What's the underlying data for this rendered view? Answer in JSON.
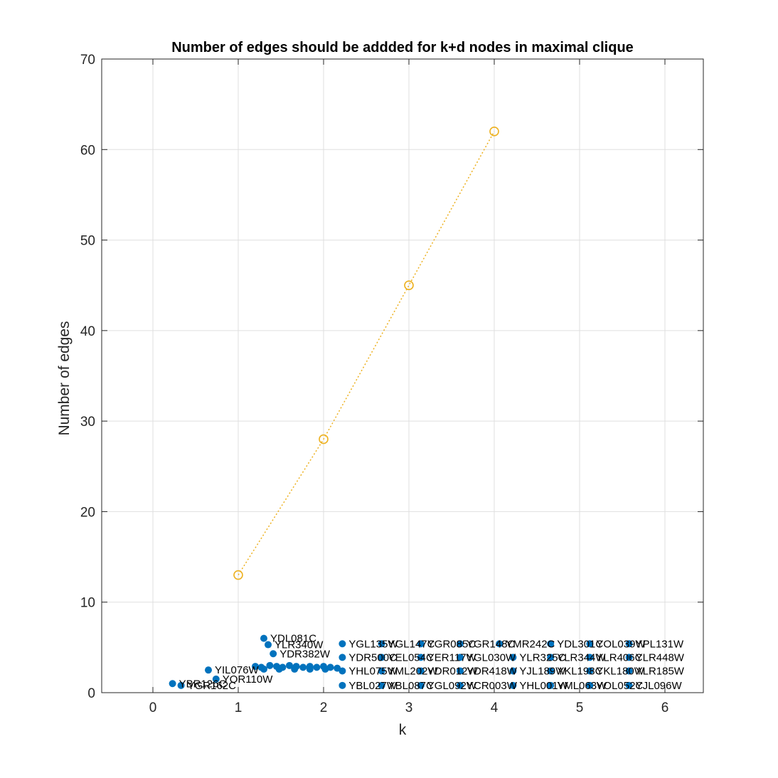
{
  "chart_data": {
    "type": "scatter",
    "title": "Number of edges should be addded for k+d nodes in maximal clique",
    "xlabel": "k",
    "ylabel": "Number of edges",
    "xlim": [
      -0.6,
      6.45
    ],
    "ylim": [
      0,
      70
    ],
    "xticks": [
      "0",
      "1",
      "2",
      "3",
      "4",
      "5",
      "6"
    ],
    "yticks": [
      "0",
      "10",
      "20",
      "30",
      "40",
      "50",
      "60",
      "70"
    ],
    "grid": true,
    "colors": {
      "line": "#EDB120",
      "points": "#0072BD",
      "grid": "#DFDFDF",
      "axis": "#262626"
    },
    "line_series": {
      "style": "dotted",
      "marker": "open-circle",
      "x": [
        1,
        2,
        3,
        4
      ],
      "y": [
        13,
        28,
        45,
        62
      ]
    },
    "points": [
      {
        "label": "YDL081C",
        "x": 1.3,
        "y": 6.0
      },
      {
        "label": "YLR340W",
        "x": 1.35,
        "y": 5.3
      },
      {
        "label": "YDR382W",
        "x": 1.41,
        "y": 4.3
      },
      {
        "label": "YIL076W",
        "x": 0.65,
        "y": 2.5
      },
      {
        "label": "YOR110W",
        "x": 0.74,
        "y": 1.5
      },
      {
        "label": "YBR126C",
        "x": 0.23,
        "y": 1.0
      },
      {
        "label": "YGR162C",
        "x": 0.33,
        "y": 0.8
      },
      {
        "label": "YGL135W",
        "x": 2.22,
        "y": 5.4
      },
      {
        "label": "YGL147C",
        "x": 2.68,
        "y": 5.4
      },
      {
        "label": "YGR085C",
        "x": 3.14,
        "y": 5.4
      },
      {
        "label": "YGR148C",
        "x": 3.6,
        "y": 5.4
      },
      {
        "label": "YMR242C",
        "x": 4.06,
        "y": 5.4
      },
      {
        "label": "YDL301C",
        "x": 4.66,
        "y": 5.4
      },
      {
        "label": "YOL039W",
        "x": 5.12,
        "y": 5.4
      },
      {
        "label": "YPL131W",
        "x": 5.58,
        "y": 5.4
      },
      {
        "label": "YDR500C",
        "x": 2.22,
        "y": 3.9
      },
      {
        "label": "YEL054C",
        "x": 2.68,
        "y": 3.9
      },
      {
        "label": "YER117W",
        "x": 3.14,
        "y": 3.9
      },
      {
        "label": "YGL030W",
        "x": 3.6,
        "y": 3.9
      },
      {
        "label": "YLR325C",
        "x": 4.22,
        "y": 3.9
      },
      {
        "label": "YLR344W",
        "x": 4.66,
        "y": 3.9
      },
      {
        "label": "YLR406C",
        "x": 5.12,
        "y": 3.9
      },
      {
        "label": "YLR448W",
        "x": 5.58,
        "y": 3.9
      },
      {
        "label": "YHL075W",
        "x": 2.22,
        "y": 2.4
      },
      {
        "label": "YML202W",
        "x": 2.68,
        "y": 2.4
      },
      {
        "label": "YDR012W",
        "x": 3.14,
        "y": 2.4
      },
      {
        "label": "YDR418W",
        "x": 3.6,
        "y": 2.4
      },
      {
        "label": "YJL189W",
        "x": 4.22,
        "y": 2.4
      },
      {
        "label": "YKL198C",
        "x": 4.66,
        "y": 2.4
      },
      {
        "label": "YKL180W",
        "x": 5.12,
        "y": 2.4
      },
      {
        "label": "YLR185W",
        "x": 5.58,
        "y": 2.4
      },
      {
        "label": "YBL027W",
        "x": 2.22,
        "y": 0.8
      },
      {
        "label": "YBL087C",
        "x": 2.68,
        "y": 0.8
      },
      {
        "label": "YGL092W",
        "x": 3.14,
        "y": 0.8
      },
      {
        "label": "YCR003W",
        "x": 3.6,
        "y": 0.8
      },
      {
        "label": "YHL001W",
        "x": 4.22,
        "y": 0.8
      },
      {
        "label": "YML063W",
        "x": 4.66,
        "y": 0.8
      },
      {
        "label": "YOL052C",
        "x": 5.12,
        "y": 0.8
      },
      {
        "label": "YJL096W",
        "x": 5.58,
        "y": 0.8
      }
    ],
    "overlapping_points": [
      {
        "x": 1.2,
        "y": 2.9
      },
      {
        "x": 1.27,
        "y": 2.8
      },
      {
        "x": 1.37,
        "y": 3.0
      },
      {
        "x": 1.45,
        "y": 2.9
      },
      {
        "x": 1.52,
        "y": 2.8
      },
      {
        "x": 1.6,
        "y": 3.0
      },
      {
        "x": 1.68,
        "y": 2.9
      },
      {
        "x": 1.76,
        "y": 2.8
      },
      {
        "x": 1.84,
        "y": 2.9
      },
      {
        "x": 1.92,
        "y": 2.8
      },
      {
        "x": 2.0,
        "y": 2.9
      },
      {
        "x": 2.08,
        "y": 2.8
      },
      {
        "x": 2.16,
        "y": 2.7
      },
      {
        "x": 1.3,
        "y": 2.6
      },
      {
        "x": 1.48,
        "y": 2.6
      },
      {
        "x": 1.66,
        "y": 2.6
      },
      {
        "x": 1.84,
        "y": 2.6
      },
      {
        "x": 2.02,
        "y": 2.6
      }
    ]
  }
}
